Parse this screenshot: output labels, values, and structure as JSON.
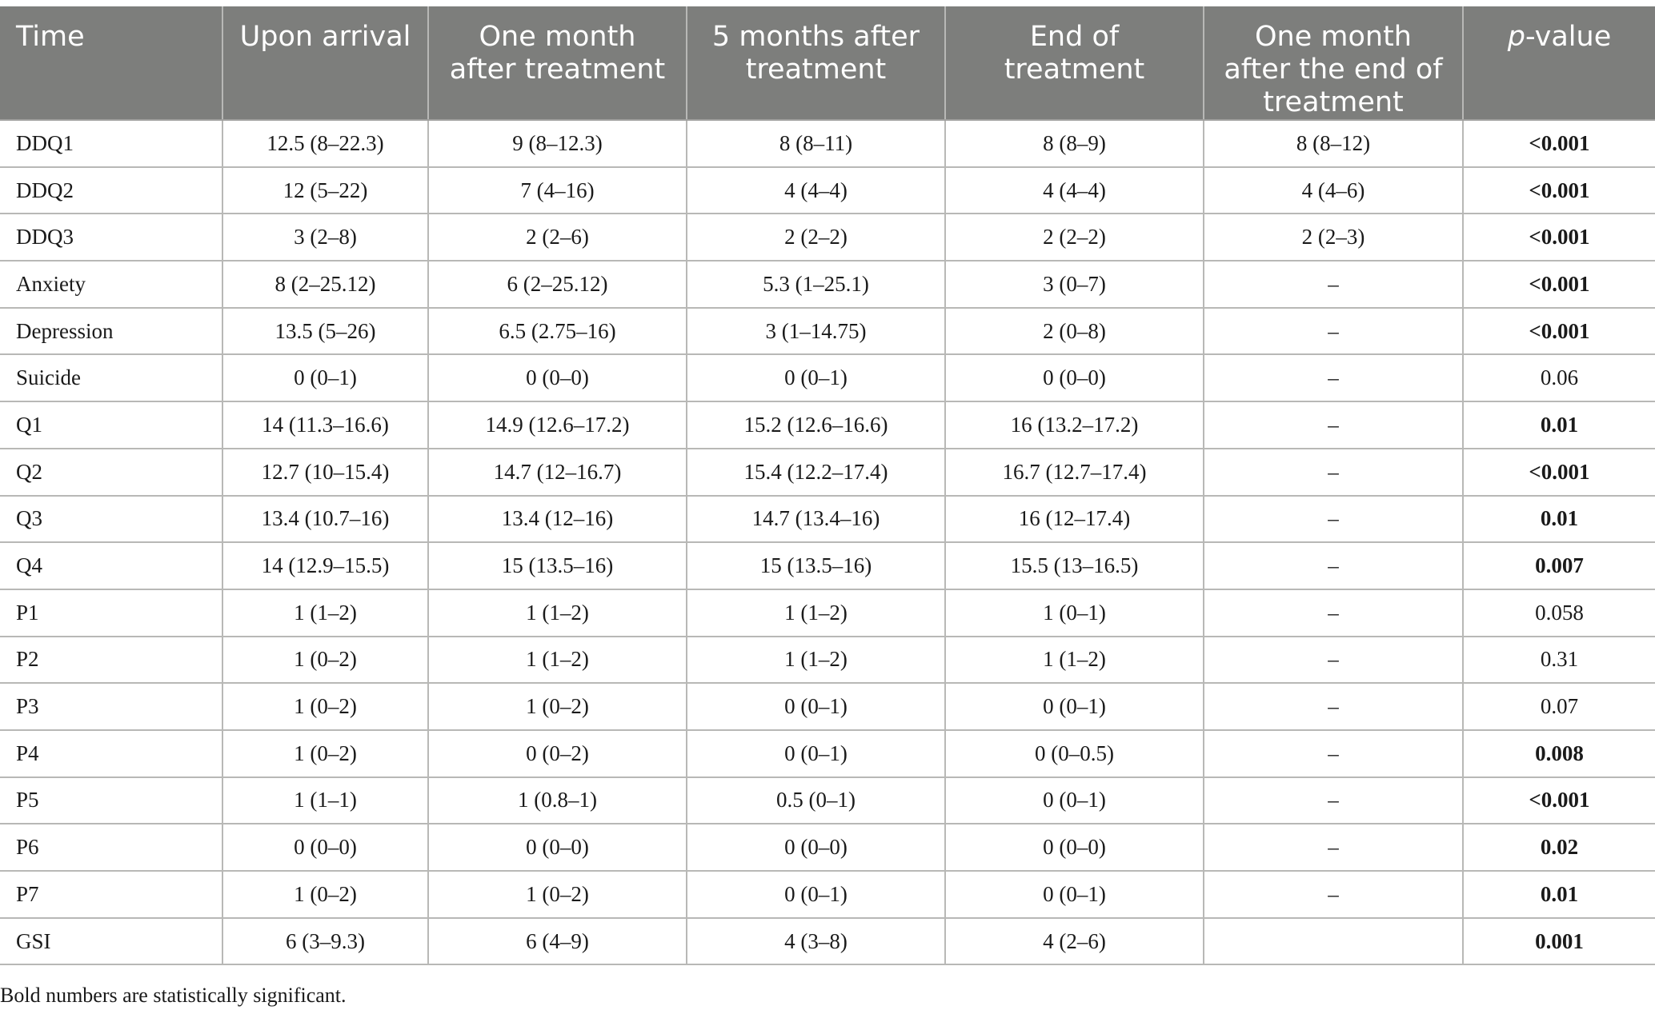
{
  "table": {
    "headers": {
      "time": "Time",
      "upon_arrival": "Upon arrival",
      "one_month_l1": "One month",
      "one_month_l2": "after treatment",
      "five_months_l1": "5 months after",
      "five_months_l2": "treatment",
      "end_l1": "End of",
      "end_l2": "treatment",
      "after_end_l1": "One month",
      "after_end_l2": "after the end of",
      "after_end_l3": "treatment",
      "p_italic": "p",
      "p_rest": "-value"
    },
    "rows": [
      {
        "label": "DDQ1",
        "c1": "12.5 (8–22.3)",
        "c2": "9 (8–12.3)",
        "c3": "8 (8–11)",
        "c4": "8 (8–9)",
        "c5": "8 (8–12)",
        "p": "<0.001",
        "sig": true
      },
      {
        "label": "DDQ2",
        "c1": "12 (5–22)",
        "c2": "7 (4–16)",
        "c3": "4 (4–4)",
        "c4": "4 (4–4)",
        "c5": "4 (4–6)",
        "p": "<0.001",
        "sig": true
      },
      {
        "label": "DDQ3",
        "c1": "3 (2–8)",
        "c2": "2 (2–6)",
        "c3": "2 (2–2)",
        "c4": "2 (2–2)",
        "c5": "2 (2–3)",
        "p": "<0.001",
        "sig": true
      },
      {
        "label": "Anxiety",
        "c1": "8 (2–25.12)",
        "c2": "6 (2–25.12)",
        "c3": "5.3 (1–25.1)",
        "c4": "3 (0–7)",
        "c5": "–",
        "p": "<0.001",
        "sig": true
      },
      {
        "label": "Depression",
        "c1": "13.5 (5–26)",
        "c2": "6.5 (2.75–16)",
        "c3": "3 (1–14.75)",
        "c4": "2 (0–8)",
        "c5": "–",
        "p": "<0.001",
        "sig": true
      },
      {
        "label": "Suicide",
        "c1": "0 (0–1)",
        "c2": "0 (0–0)",
        "c3": "0 (0–1)",
        "c4": "0 (0–0)",
        "c5": "–",
        "p": "0.06",
        "sig": false
      },
      {
        "label": "Q1",
        "c1": "14 (11.3–16.6)",
        "c2": "14.9 (12.6–17.2)",
        "c3": "15.2 (12.6–16.6)",
        "c4": "16 (13.2–17.2)",
        "c5": "–",
        "p": "0.01",
        "sig": true
      },
      {
        "label": "Q2",
        "c1": "12.7 (10–15.4)",
        "c2": "14.7 (12–16.7)",
        "c3": "15.4 (12.2–17.4)",
        "c4": "16.7 (12.7–17.4)",
        "c5": "–",
        "p": "<0.001",
        "sig": true
      },
      {
        "label": "Q3",
        "c1": "13.4 (10.7–16)",
        "c2": "13.4 (12–16)",
        "c3": "14.7 (13.4–16)",
        "c4": "16 (12–17.4)",
        "c5": "–",
        "p": "0.01",
        "sig": true
      },
      {
        "label": "Q4",
        "c1": "14 (12.9–15.5)",
        "c2": "15 (13.5–16)",
        "c3": "15 (13.5–16)",
        "c4": "15.5 (13–16.5)",
        "c5": "–",
        "p": "0.007",
        "sig": true
      },
      {
        "label": "P1",
        "c1": "1 (1–2)",
        "c2": "1 (1–2)",
        "c3": "1 (1–2)",
        "c4": "1 (0–1)",
        "c5": "–",
        "p": "0.058",
        "sig": false
      },
      {
        "label": "P2",
        "c1": "1 (0–2)",
        "c2": "1 (1–2)",
        "c3": "1 (1–2)",
        "c4": "1 (1–2)",
        "c5": "–",
        "p": "0.31",
        "sig": false
      },
      {
        "label": "P3",
        "c1": "1 (0–2)",
        "c2": "1 (0–2)",
        "c3": "0 (0–1)",
        "c4": "0 (0–1)",
        "c5": "–",
        "p": "0.07",
        "sig": false
      },
      {
        "label": "P4",
        "c1": "1 (0–2)",
        "c2": "0 (0–2)",
        "c3": "0 (0–1)",
        "c4": "0 (0–0.5)",
        "c5": "–",
        "p": "0.008",
        "sig": true
      },
      {
        "label": "P5",
        "c1": "1 (1–1)",
        "c2": "1 (0.8–1)",
        "c3": "0.5 (0–1)",
        "c4": "0 (0–1)",
        "c5": "–",
        "p": "<0.001",
        "sig": true
      },
      {
        "label": "P6",
        "c1": "0 (0–0)",
        "c2": "0 (0–0)",
        "c3": "0 (0–0)",
        "c4": "0 (0–0)",
        "c5": "–",
        "p": "0.02",
        "sig": true
      },
      {
        "label": "P7",
        "c1": "1 (0–2)",
        "c2": "1 (0–2)",
        "c3": "0 (0–1)",
        "c4": "0 (0–1)",
        "c5": "–",
        "p": "0.01",
        "sig": true
      },
      {
        "label": "GSI",
        "c1": "6 (3–9.3)",
        "c2": "6 (4–9)",
        "c3": "4 (3–8)",
        "c4": "4 (2–6)",
        "c5": "",
        "p": "0.001",
        "sig": true
      }
    ]
  },
  "footnote": "Bold numbers are statistically significant.",
  "colors": {
    "header_bg": "#7d7e7c",
    "header_text": "#ffffff",
    "grid": "#b8b8b6"
  }
}
